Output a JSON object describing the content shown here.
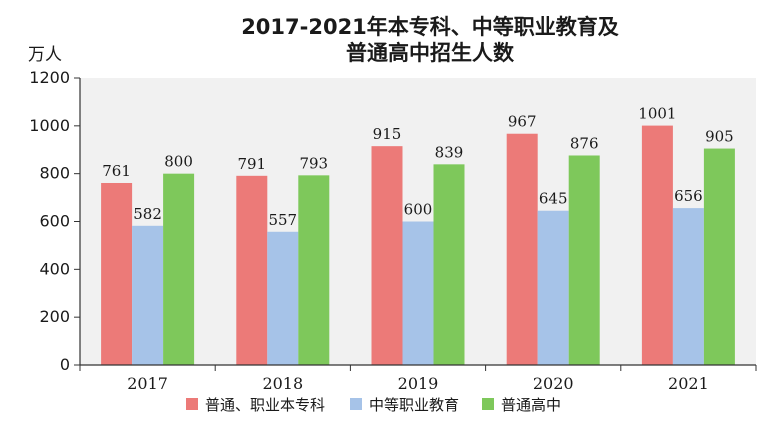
{
  "chart_data": {
    "type": "bar",
    "title_lines": [
      "2017-2021年本专科、中等职业教育及",
      "普通高中招生人数"
    ],
    "ylabel": "万人",
    "xlabel": "",
    "ylim": [
      0,
      1200
    ],
    "yticks": [
      0,
      200,
      400,
      600,
      800,
      1000,
      1200
    ],
    "grid": false,
    "legend_position": "bottom",
    "categories": [
      "2017",
      "2018",
      "2019",
      "2020",
      "2021"
    ],
    "series": [
      {
        "name": "普通、职业本专科",
        "color": "#ec7a78",
        "values": [
          761,
          791,
          915,
          967,
          1001
        ]
      },
      {
        "name": "中等职业教育",
        "color": "#a6c3e8",
        "values": [
          582,
          557,
          600,
          645,
          656
        ]
      },
      {
        "name": "普通高中",
        "color": "#7ec85b",
        "values": [
          800,
          793,
          839,
          876,
          905
        ]
      }
    ],
    "plot_background": "#f1f1f1"
  }
}
